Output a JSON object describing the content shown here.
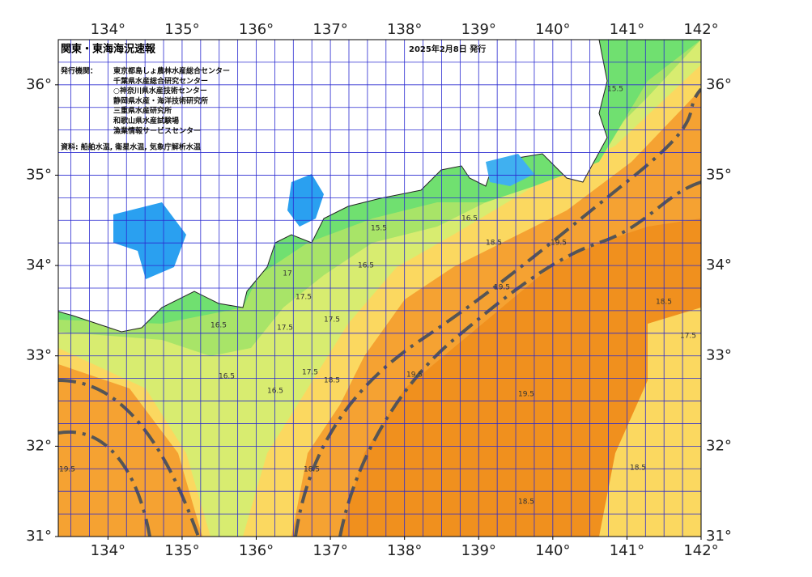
{
  "header": {
    "title": "関東・東海海況速報",
    "date": "2025年2月8日 発行"
  },
  "issuers": {
    "label": "発行機関：",
    "names": [
      "東京都島しょ農林水産総合センター",
      "千葉県水産総合研究センター",
      "○神奈川県水産技術センター",
      "静岡県水産・海洋技術研究所",
      "三重県水産研究所",
      "和歌山県水産試験場",
      "漁業情報サービスセンター"
    ]
  },
  "source": "資料: 船舶水温, 衛星水温, 気象庁解析水温",
  "map": {
    "lon_range": [
      133.33,
      142
    ],
    "lat_range": [
      31,
      36.5
    ],
    "lon_ticks": [
      {
        "value": 134,
        "label": "134°"
      },
      {
        "value": 135,
        "label": "135°"
      },
      {
        "value": 136,
        "label": "136°"
      },
      {
        "value": 137,
        "label": "137°"
      },
      {
        "value": 138,
        "label": "138°"
      },
      {
        "value": 139,
        "label": "139°"
      },
      {
        "value": 140,
        "label": "140°"
      },
      {
        "value": 141,
        "label": "141°"
      },
      {
        "value": 142,
        "label": "142°"
      }
    ],
    "lat_ticks": [
      {
        "value": 31,
        "label": "31°"
      },
      {
        "value": 32,
        "label": "32°"
      },
      {
        "value": 33,
        "label": "33°"
      },
      {
        "value": 34,
        "label": "34°"
      },
      {
        "value": 35,
        "label": "35°"
      },
      {
        "value": 36,
        "label": "36°"
      }
    ],
    "contour_labels": [
      "15.5",
      "16.5",
      "17",
      "17.5",
      "17.5",
      "17.5",
      "16.5",
      "16.5",
      "16.5",
      "17.5",
      "18.5",
      "19.5",
      "19.5",
      "19.5",
      "18.5",
      "17.5",
      "18.5",
      "18.5",
      "19.5",
      "18.5",
      "19.5",
      "15.5",
      "18.5",
      "16.5"
    ]
  }
}
